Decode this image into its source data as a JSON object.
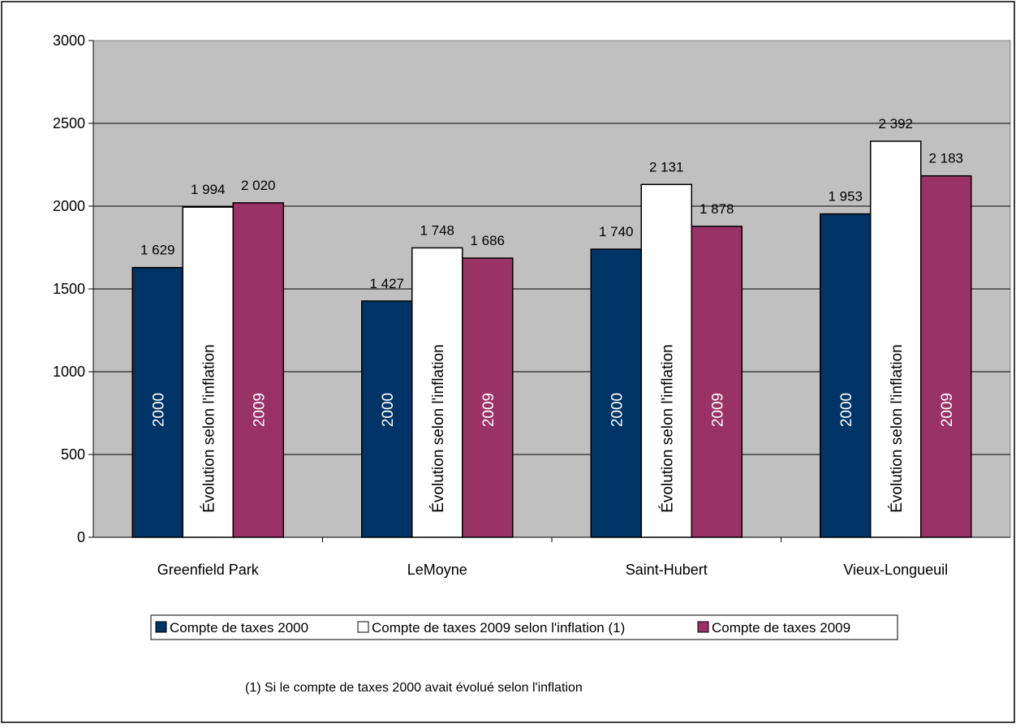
{
  "chart_data": {
    "type": "bar",
    "categories": [
      "Greenfield Park",
      "LeMoyne",
      "Saint-Hubert",
      "Vieux-Longueuil"
    ],
    "series": [
      {
        "name": "Compte de taxes 2000",
        "bar_label": "2000",
        "color": "#003366",
        "values": [
          1629,
          1427,
          1740,
          1953
        ],
        "value_labels": [
          "1 629",
          "1 427",
          "1 740",
          "1 953"
        ]
      },
      {
        "name": "Compte de taxes 2009 selon l'inflation (1)",
        "bar_label": "Évolution selon l'inflation",
        "color": "#ffffff",
        "values": [
          1994,
          1748,
          2131,
          2392
        ],
        "value_labels": [
          "1 994",
          "1 748",
          "2 131",
          "2 392"
        ]
      },
      {
        "name": "Compte de taxes 2009",
        "bar_label": "2009",
        "color": "#993366",
        "values": [
          2020,
          1686,
          1878,
          2183
        ],
        "value_labels": [
          "2 020",
          "1 686",
          "1 878",
          "2 183"
        ]
      }
    ],
    "y_ticks": [
      "0",
      "500",
      "1000",
      "1500",
      "2000",
      "2500",
      "3000"
    ],
    "ylim": [
      0,
      3000
    ],
    "grid": true,
    "plot_background": "#c0c0c0",
    "legend_position": "bottom",
    "footnote": "(1) Si le compte de taxes 2000 avait évolué selon l'inflation"
  }
}
